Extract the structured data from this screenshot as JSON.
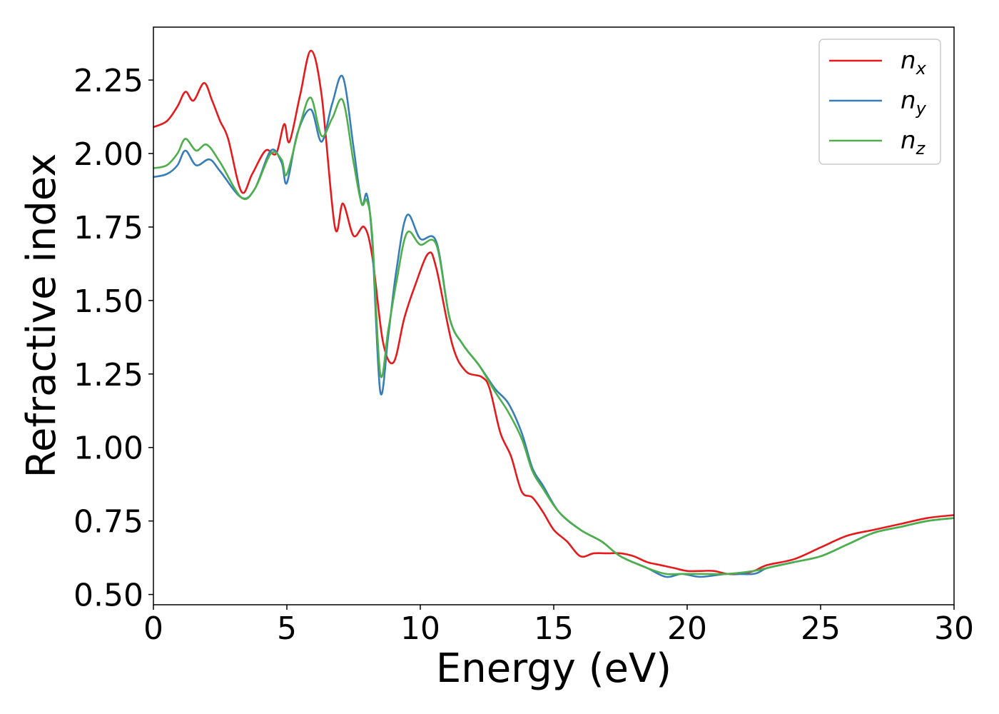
{
  "chart_data": {
    "type": "line",
    "xlabel": "Energy (eV)",
    "ylabel": "Refractive index",
    "xlim": [
      0,
      30
    ],
    "ylim": [
      0.465,
      2.43
    ],
    "xticks": [
      0,
      5,
      10,
      15,
      20,
      25,
      30
    ],
    "xtick_labels": [
      "0",
      "5",
      "10",
      "15",
      "20",
      "25",
      "30"
    ],
    "yticks": [
      0.5,
      0.75,
      1.0,
      1.25,
      1.5,
      1.75,
      2.0,
      2.25
    ],
    "ytick_labels": [
      "0.50",
      "0.75",
      "1.00",
      "1.25",
      "1.50",
      "1.75",
      "2.00",
      "2.25"
    ],
    "grid": false,
    "legend_position": "top-right",
    "series": [
      {
        "name": "n",
        "subscript": "x",
        "color": "#e41a1c",
        "x": [
          0,
          0.5,
          0.9,
          1.2,
          1.5,
          1.9,
          2.2,
          2.5,
          2.8,
          3.3,
          3.7,
          4.2,
          4.6,
          4.9,
          5.1,
          5.5,
          5.9,
          6.3,
          6.8,
          7.1,
          7.5,
          7.9,
          8.2,
          8.6,
          9.0,
          9.4,
          9.8,
          10.3,
          10.6,
          11.2,
          11.7,
          12.3,
          12.6,
          13.0,
          13.4,
          13.8,
          14.2,
          14.6,
          15.0,
          15.5,
          16.0,
          16.5,
          17.0,
          17.5,
          18.0,
          18.5,
          19.0,
          19.5,
          20.0,
          20.5,
          21.0,
          21.5,
          22.0,
          22.5,
          23.0,
          24.0,
          25.0,
          26.0,
          27.0,
          28.0,
          29.0,
          30.0
        ],
        "y": [
          2.09,
          2.11,
          2.16,
          2.21,
          2.18,
          2.24,
          2.18,
          2.11,
          2.05,
          1.87,
          1.93,
          2.01,
          2.0,
          2.1,
          2.04,
          2.2,
          2.35,
          2.2,
          1.75,
          1.83,
          1.72,
          1.75,
          1.65,
          1.36,
          1.29,
          1.44,
          1.55,
          1.66,
          1.61,
          1.35,
          1.26,
          1.24,
          1.2,
          1.05,
          0.97,
          0.85,
          0.83,
          0.78,
          0.72,
          0.68,
          0.63,
          0.64,
          0.64,
          0.64,
          0.63,
          0.61,
          0.6,
          0.59,
          0.58,
          0.58,
          0.58,
          0.57,
          0.57,
          0.58,
          0.6,
          0.62,
          0.66,
          0.7,
          0.72,
          0.74,
          0.76,
          0.77
        ]
      },
      {
        "name": "n",
        "subscript": "y",
        "color": "#377eb8",
        "x": [
          0,
          0.5,
          0.9,
          1.2,
          1.6,
          2.1,
          2.5,
          3.3,
          3.8,
          4.4,
          4.8,
          5.0,
          5.4,
          5.9,
          6.3,
          6.7,
          7.1,
          7.5,
          7.8,
          8.0,
          8.2,
          8.5,
          8.8,
          9.1,
          9.5,
          10.0,
          10.6,
          11.1,
          11.6,
          12.2,
          12.8,
          13.3,
          13.8,
          14.2,
          14.6,
          15.2,
          16.0,
          16.8,
          17.5,
          18.5,
          19.2,
          19.8,
          20.5,
          21.5,
          22.5,
          23.0,
          24.0,
          25.0,
          26.0,
          27.0,
          28.0,
          29.0,
          30.0
        ],
        "y": [
          1.92,
          1.93,
          1.96,
          2.01,
          1.96,
          1.98,
          1.94,
          1.85,
          1.88,
          2.01,
          1.97,
          1.9,
          2.07,
          2.15,
          2.04,
          2.17,
          2.26,
          2.02,
          1.83,
          1.86,
          1.7,
          1.19,
          1.38,
          1.6,
          1.79,
          1.71,
          1.7,
          1.44,
          1.35,
          1.28,
          1.2,
          1.15,
          1.05,
          0.93,
          0.87,
          0.78,
          0.72,
          0.68,
          0.63,
          0.59,
          0.56,
          0.57,
          0.56,
          0.57,
          0.57,
          0.59,
          0.61,
          0.63,
          0.67,
          0.71,
          0.73,
          0.75,
          0.76
        ]
      },
      {
        "name": "n",
        "subscript": "z",
        "color": "#4daf4a",
        "x": [
          0,
          0.5,
          0.9,
          1.2,
          1.6,
          2.0,
          2.5,
          3.3,
          3.8,
          4.4,
          4.8,
          5.0,
          5.5,
          5.9,
          6.3,
          6.7,
          7.1,
          7.5,
          7.8,
          8.0,
          8.2,
          8.5,
          8.8,
          9.1,
          9.5,
          10.0,
          10.6,
          11.1,
          11.6,
          12.2,
          12.8,
          13.3,
          13.8,
          14.2,
          14.6,
          15.2,
          16.0,
          16.8,
          17.5,
          18.5,
          19.2,
          19.8,
          20.5,
          21.5,
          22.5,
          23.0,
          24.0,
          25.0,
          26.0,
          27.0,
          28.0,
          29.0,
          30.0
        ],
        "y": [
          1.95,
          1.96,
          2.0,
          2.05,
          2.01,
          2.03,
          1.97,
          1.85,
          1.88,
          2.0,
          1.98,
          1.93,
          2.1,
          2.19,
          2.06,
          2.12,
          2.18,
          1.97,
          1.83,
          1.84,
          1.72,
          1.25,
          1.4,
          1.56,
          1.73,
          1.69,
          1.69,
          1.44,
          1.35,
          1.28,
          1.19,
          1.12,
          1.03,
          0.92,
          0.86,
          0.78,
          0.72,
          0.68,
          0.63,
          0.59,
          0.57,
          0.57,
          0.57,
          0.57,
          0.58,
          0.59,
          0.61,
          0.63,
          0.67,
          0.71,
          0.73,
          0.75,
          0.76
        ]
      }
    ]
  }
}
